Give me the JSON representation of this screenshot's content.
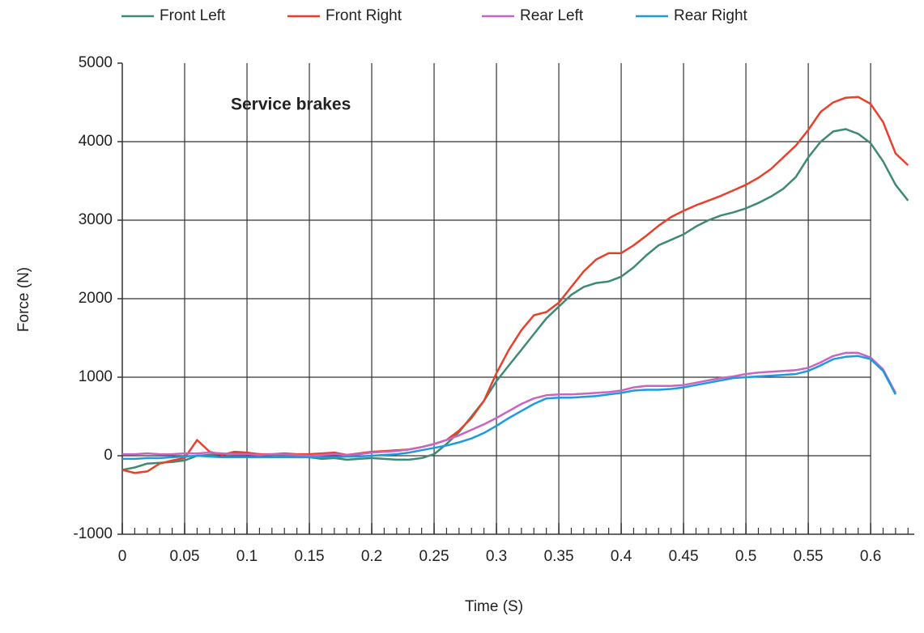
{
  "chart_data": {
    "type": "line",
    "annotation": "Service brakes",
    "xlabel": "Time (S)",
    "ylabel": "Force (N)",
    "x": [
      0,
      0.01,
      0.02,
      0.03,
      0.04,
      0.05,
      0.06,
      0.07,
      0.08,
      0.09,
      0.1,
      0.11,
      0.12,
      0.13,
      0.14,
      0.15,
      0.16,
      0.17,
      0.18,
      0.19,
      0.2,
      0.21,
      0.22,
      0.23,
      0.24,
      0.25,
      0.26,
      0.27,
      0.28,
      0.29,
      0.3,
      0.31,
      0.32,
      0.33,
      0.34,
      0.35,
      0.36,
      0.37,
      0.38,
      0.39,
      0.4,
      0.41,
      0.42,
      0.43,
      0.44,
      0.45,
      0.46,
      0.47,
      0.48,
      0.49,
      0.5,
      0.51,
      0.52,
      0.53,
      0.54,
      0.55,
      0.56,
      0.57,
      0.58,
      0.59,
      0.6,
      0.61,
      0.62,
      0.63
    ],
    "series": [
      {
        "name": "Front Left",
        "color": "#3e8a73",
        "values": [
          -180,
          -150,
          -100,
          -90,
          -80,
          -60,
          0,
          10,
          20,
          30,
          30,
          20,
          10,
          0,
          -10,
          -20,
          -40,
          -30,
          -50,
          -40,
          -30,
          -40,
          -50,
          -50,
          -30,
          20,
          150,
          300,
          500,
          700,
          950,
          1150,
          1350,
          1550,
          1750,
          1900,
          2050,
          2150,
          2200,
          2220,
          2280,
          2400,
          2550,
          2680,
          2750,
          2820,
          2920,
          3000,
          3060,
          3100,
          3150,
          3220,
          3300,
          3400,
          3550,
          3800,
          4000,
          4130,
          4160,
          4100,
          3980,
          3750,
          3450,
          3250
        ]
      },
      {
        "name": "Front Right",
        "color": "#e8402a",
        "values": [
          -180,
          -220,
          -200,
          -100,
          -60,
          -30,
          200,
          50,
          10,
          50,
          40,
          20,
          20,
          30,
          20,
          20,
          30,
          40,
          10,
          30,
          50,
          60,
          70,
          80,
          110,
          150,
          200,
          320,
          480,
          700,
          1050,
          1350,
          1600,
          1790,
          1830,
          1950,
          2150,
          2350,
          2500,
          2580,
          2580,
          2680,
          2800,
          2930,
          3040,
          3120,
          3190,
          3250,
          3310,
          3380,
          3450,
          3540,
          3650,
          3800,
          3950,
          4150,
          4380,
          4500,
          4560,
          4570,
          4480,
          4250,
          3850,
          3700
        ]
      },
      {
        "name": "Rear Left",
        "color": "#c865c0",
        "values": [
          20,
          20,
          30,
          20,
          20,
          30,
          30,
          40,
          30,
          20,
          20,
          10,
          20,
          20,
          10,
          0,
          10,
          20,
          10,
          20,
          40,
          50,
          60,
          80,
          110,
          150,
          200,
          260,
          330,
          400,
          480,
          570,
          660,
          730,
          770,
          780,
          780,
          790,
          800,
          810,
          830,
          870,
          890,
          890,
          890,
          900,
          930,
          960,
          990,
          1010,
          1040,
          1060,
          1070,
          1080,
          1090,
          1120,
          1190,
          1270,
          1310,
          1310,
          1250,
          1100,
          800,
          null
        ]
      },
      {
        "name": "Rear Right",
        "color": "#1e9be0",
        "values": [
          -40,
          -40,
          -30,
          -30,
          -20,
          -10,
          0,
          -10,
          -20,
          -20,
          -20,
          -20,
          -20,
          -20,
          -20,
          -20,
          -20,
          -20,
          -10,
          -10,
          0,
          10,
          20,
          40,
          70,
          100,
          130,
          170,
          220,
          290,
          380,
          480,
          570,
          660,
          730,
          740,
          740,
          750,
          760,
          780,
          800,
          830,
          840,
          840,
          850,
          870,
          900,
          930,
          960,
          990,
          1000,
          1010,
          1020,
          1030,
          1040,
          1080,
          1150,
          1230,
          1260,
          1270,
          1230,
          1080,
          780,
          null
        ]
      }
    ],
    "xlim": [
      0,
      0.635
    ],
    "xticks": [
      0,
      0.05,
      0.1,
      0.15,
      0.2,
      0.25,
      0.3,
      0.35,
      0.4,
      0.45,
      0.5,
      0.55,
      0.6
    ],
    "ylim": [
      -1000,
      5000
    ],
    "yticks": [
      -1000,
      0,
      1000,
      2000,
      3000,
      4000,
      5000
    ],
    "grid": true,
    "legend": "top"
  }
}
